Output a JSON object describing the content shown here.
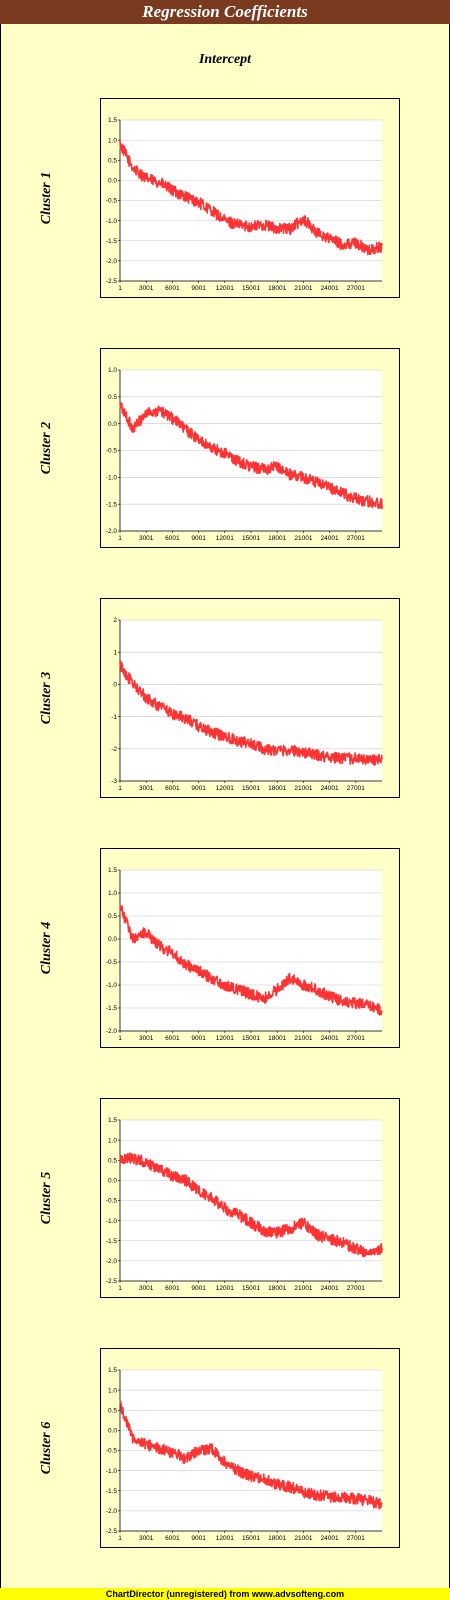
{
  "header": {
    "title": "Regression Coefficients"
  },
  "subtitle": "Intercept",
  "footer": "ChartDirector (unregistered) from www.advsofteng.com",
  "colors": {
    "header_bg": "#7a3a20",
    "page_bg": "#ffffc8",
    "plot_bg": "#ffffff",
    "line": "#ff3333",
    "footer_bg": "#ffff00"
  },
  "chart_data": [
    {
      "type": "line",
      "label": "Cluster 1",
      "x_ticks": [
        "1",
        "3001",
        "6001",
        "9001",
        "12001",
        "15001",
        "18001",
        "21001",
        "24001",
        "27001"
      ],
      "xlim": [
        1,
        30000
      ],
      "y_ticks": [
        "1.5",
        "1.0",
        "0.5",
        "0.0",
        "-0.5",
        "-1.0",
        "-1.5",
        "-2.0",
        "-2.5"
      ],
      "ylim": [
        -2.5,
        1.5
      ],
      "series": [
        {
          "color": "#ff3333",
          "x": [
            1,
            1500,
            3000,
            4500,
            6000,
            7500,
            9000,
            10500,
            12000,
            13500,
            15000,
            16500,
            18000,
            19500,
            21000,
            22500,
            24000,
            25500,
            27000,
            28500,
            30000
          ],
          "y": [
            0.9,
            0.3,
            0.05,
            -0.05,
            -0.25,
            -0.4,
            -0.55,
            -0.75,
            -1.0,
            -1.1,
            -1.15,
            -1.1,
            -1.2,
            -1.2,
            -0.95,
            -1.3,
            -1.45,
            -1.6,
            -1.55,
            -1.75,
            -1.65
          ]
        }
      ]
    },
    {
      "type": "line",
      "label": "Cluster 2",
      "x_ticks": [
        "1",
        "3001",
        "6001",
        "9001",
        "12001",
        "15001",
        "18001",
        "21001",
        "24001",
        "27001"
      ],
      "xlim": [
        1,
        30000
      ],
      "y_ticks": [
        "1.0",
        "0.5",
        "0.0",
        "-0.5",
        "-1.0",
        "-1.5",
        "-2.0"
      ],
      "ylim": [
        -2.0,
        1.0
      ],
      "series": [
        {
          "color": "#ff3333",
          "x": [
            1,
            1500,
            3000,
            4500,
            6000,
            7500,
            9000,
            10500,
            12000,
            13500,
            15000,
            16500,
            18000,
            19500,
            21000,
            22500,
            24000,
            25500,
            27000,
            28500,
            30000
          ],
          "y": [
            0.35,
            -0.1,
            0.2,
            0.25,
            0.1,
            -0.1,
            -0.3,
            -0.45,
            -0.55,
            -0.7,
            -0.8,
            -0.85,
            -0.8,
            -0.95,
            -1.0,
            -1.1,
            -1.2,
            -1.3,
            -1.4,
            -1.45,
            -1.5
          ]
        }
      ]
    },
    {
      "type": "line",
      "label": "Cluster 3",
      "x_ticks": [
        "1",
        "3001",
        "6001",
        "9001",
        "12001",
        "15001",
        "18001",
        "21001",
        "24001",
        "27001"
      ],
      "xlim": [
        1,
        30000
      ],
      "y_ticks": [
        "2",
        "1",
        "0",
        "-1",
        "-2",
        "-3"
      ],
      "ylim": [
        -3,
        2
      ],
      "series": [
        {
          "color": "#ff3333",
          "x": [
            1,
            1500,
            3000,
            4500,
            6000,
            7500,
            9000,
            10500,
            12000,
            13500,
            15000,
            16500,
            18000,
            19500,
            21000,
            22500,
            24000,
            25500,
            27000,
            28500,
            30000
          ],
          "y": [
            0.6,
            0.0,
            -0.4,
            -0.7,
            -0.9,
            -1.05,
            -1.3,
            -1.5,
            -1.6,
            -1.75,
            -1.85,
            -2.0,
            -2.05,
            -2.05,
            -2.1,
            -2.2,
            -2.25,
            -2.3,
            -2.3,
            -2.35,
            -2.35
          ]
        }
      ]
    },
    {
      "type": "line",
      "label": "Cluster 4",
      "x_ticks": [
        "1",
        "3001",
        "6001",
        "9001",
        "12001",
        "15001",
        "18001",
        "21001",
        "24001",
        "27001"
      ],
      "xlim": [
        1,
        30000
      ],
      "y_ticks": [
        "1.5",
        "1.0",
        "0.5",
        "0.0",
        "-0.5",
        "-1.0",
        "-1.5",
        "-2.0"
      ],
      "ylim": [
        -2.0,
        1.5
      ],
      "series": [
        {
          "color": "#ff3333",
          "x": [
            1,
            1500,
            3000,
            4500,
            6000,
            7500,
            9000,
            10500,
            12000,
            13500,
            15000,
            16500,
            18000,
            19500,
            21000,
            22500,
            24000,
            25500,
            27000,
            28500,
            30000
          ],
          "y": [
            0.7,
            0.0,
            0.15,
            -0.15,
            -0.3,
            -0.55,
            -0.7,
            -0.85,
            -1.0,
            -1.1,
            -1.2,
            -1.3,
            -1.1,
            -0.85,
            -1.0,
            -1.1,
            -1.25,
            -1.35,
            -1.4,
            -1.45,
            -1.55
          ]
        }
      ]
    },
    {
      "type": "line",
      "label": "Cluster 5",
      "x_ticks": [
        "1",
        "3001",
        "6001",
        "9001",
        "12001",
        "15001",
        "18001",
        "21001",
        "24001",
        "27001"
      ],
      "xlim": [
        1,
        30000
      ],
      "y_ticks": [
        "1.5",
        "1.0",
        "0.5",
        "0.0",
        "-0.5",
        "-1.0",
        "-1.5",
        "-2.0",
        "-2.5"
      ],
      "ylim": [
        -2.5,
        1.5
      ],
      "series": [
        {
          "color": "#ff3333",
          "x": [
            1,
            1500,
            3000,
            4500,
            6000,
            7500,
            9000,
            10500,
            12000,
            13500,
            15000,
            16500,
            18000,
            19500,
            21000,
            22500,
            24000,
            25500,
            27000,
            28500,
            30000
          ],
          "y": [
            0.55,
            0.55,
            0.45,
            0.3,
            0.1,
            0.0,
            -0.25,
            -0.45,
            -0.7,
            -0.85,
            -1.05,
            -1.25,
            -1.3,
            -1.2,
            -1.05,
            -1.35,
            -1.45,
            -1.55,
            -1.7,
            -1.8,
            -1.7
          ]
        }
      ]
    },
    {
      "type": "line",
      "label": "Cluster 6",
      "x_ticks": [
        "1",
        "3001",
        "6001",
        "9001",
        "12001",
        "15001",
        "18001",
        "21001",
        "24001",
        "27001"
      ],
      "xlim": [
        1,
        30000
      ],
      "y_ticks": [
        "1.5",
        "1.0",
        "0.5",
        "0.0",
        "-0.5",
        "-1.0",
        "-1.5",
        "-2.0",
        "-2.5"
      ],
      "ylim": [
        -2.5,
        1.5
      ],
      "series": [
        {
          "color": "#ff3333",
          "x": [
            1,
            1500,
            3000,
            4500,
            6000,
            7500,
            9000,
            10500,
            12000,
            13500,
            15000,
            16500,
            18000,
            19500,
            21000,
            22500,
            24000,
            25500,
            27000,
            28500,
            30000
          ],
          "y": [
            0.65,
            -0.2,
            -0.35,
            -0.45,
            -0.55,
            -0.7,
            -0.5,
            -0.45,
            -0.8,
            -1.0,
            -1.15,
            -1.2,
            -1.35,
            -1.4,
            -1.55,
            -1.6,
            -1.65,
            -1.65,
            -1.7,
            -1.75,
            -1.85
          ]
        }
      ]
    }
  ]
}
